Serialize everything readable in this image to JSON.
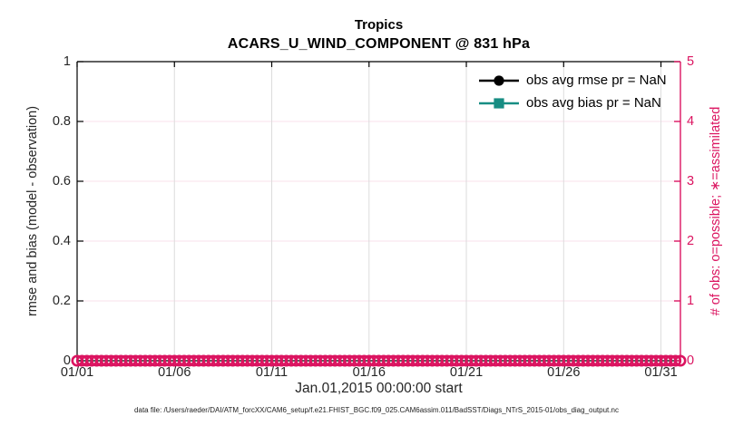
{
  "chart_data": {
    "type": "line",
    "title": "Tropics",
    "subtitle": "ACARS_U_WIND_COMPONENT @ 831 hPa",
    "xlabel": "Jan.01,2015 00:00:00 start",
    "ylabel_left": "rmse and bias (model - observation)",
    "ylabel_right": "# of obs: o=possible; ∗=assimilated",
    "caption": "data file: /Users/raeder/DAI/ATM_forcXX/CAM6_setup/f.e21.FHIST_BGC.f09_025.CAM6assim.011/BadSST/Diags_NTrS_2015-01/obs_diag_output.nc",
    "xlim_days": [
      0,
      31
    ],
    "x_tick_days": [
      0,
      5,
      10,
      15,
      20,
      25,
      30
    ],
    "x_tick_labels": [
      "01/01",
      "01/06",
      "01/11",
      "01/16",
      "01/21",
      "01/26",
      "01/31"
    ],
    "ylim_left": [
      0,
      1
    ],
    "y_ticks_left": [
      "0",
      "0.2",
      "0.4",
      "0.6",
      "0.8",
      "1"
    ],
    "ylim_right": [
      0,
      5
    ],
    "y_ticks_right": [
      "0",
      "1",
      "2",
      "3",
      "4",
      "5"
    ],
    "grid": true,
    "legend_position": "upper right inside, no box",
    "legend": [
      {
        "label": "obs avg rmse pr = NaN",
        "color": "#000000",
        "marker": "circle"
      },
      {
        "label": "obs avg bias pr = NaN",
        "color": "#178D83",
        "marker": "square"
      }
    ],
    "series": [
      {
        "name": "obs avg rmse",
        "axis": "left",
        "color": "#000000",
        "marker": "circle",
        "values": "NaN",
        "plotted": false
      },
      {
        "name": "obs avg bias",
        "axis": "left",
        "color": "#178D83",
        "marker": "square",
        "values": "NaN",
        "plotted": false
      },
      {
        "name": "# of possible obs",
        "axis": "right",
        "marker": "o",
        "color": "#DB1460",
        "value": 0,
        "time_days_start": 0,
        "time_days_end": 31,
        "time_step_days": 0.25,
        "count": 125
      }
    ],
    "colors": {
      "accent_pink": "#DB1460",
      "teal": "#178D83",
      "black": "#000000",
      "grid_vertical": "#DCDCDC",
      "grid_horizontal": "#F8E0EB",
      "axis_text": "#262626"
    }
  }
}
